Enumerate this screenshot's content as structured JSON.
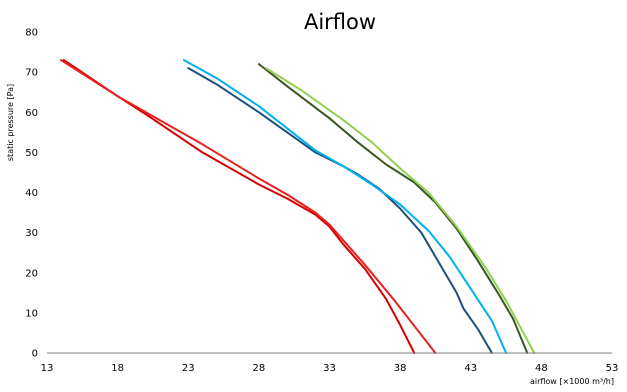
{
  "chart_data": {
    "type": "line",
    "title": "Airflow",
    "xlabel": "airflow [×1000 m³/h]",
    "ylabel": "static pressure [Pa]",
    "xlim": [
      13,
      53
    ],
    "ylim": [
      0,
      80
    ],
    "x_ticks": [
      13,
      18,
      23,
      28,
      33,
      38,
      43,
      48,
      53
    ],
    "y_ticks": [
      0,
      10,
      20,
      30,
      40,
      50,
      60,
      70,
      80
    ],
    "grid": false,
    "legend": "none",
    "series": [
      {
        "color": "#d40000",
        "points": [
          [
            14.2,
            73
          ],
          [
            18,
            64
          ],
          [
            20,
            59.5
          ],
          [
            24,
            50
          ],
          [
            28,
            42
          ],
          [
            30,
            38.5
          ],
          [
            32,
            34.5
          ],
          [
            33,
            31.5
          ],
          [
            34,
            27
          ],
          [
            35.5,
            21
          ],
          [
            37,
            13.5
          ],
          [
            38,
            7
          ],
          [
            39,
            0
          ]
        ]
      },
      {
        "color": "#e82020",
        "points": [
          [
            14,
            73
          ],
          [
            18,
            64
          ],
          [
            20,
            60
          ],
          [
            24,
            52
          ],
          [
            28,
            43.5
          ],
          [
            30,
            39.5
          ],
          [
            32,
            35
          ],
          [
            33,
            32
          ],
          [
            34,
            28
          ],
          [
            35.5,
            22
          ],
          [
            37.5,
            13.5
          ],
          [
            38.5,
            9
          ],
          [
            40.5,
            0
          ]
        ]
      },
      {
        "color": "#1f4e79",
        "points": [
          [
            23,
            71
          ],
          [
            25,
            67
          ],
          [
            28,
            60
          ],
          [
            30,
            55
          ],
          [
            32,
            50
          ],
          [
            34,
            46.5
          ],
          [
            35,
            44.5
          ],
          [
            36.5,
            41
          ],
          [
            38,
            36
          ],
          [
            39.5,
            30
          ],
          [
            41,
            21
          ],
          [
            42,
            15
          ],
          [
            42.5,
            11
          ],
          [
            43.5,
            6
          ],
          [
            44.5,
            0
          ]
        ]
      },
      {
        "color": "#00b0f0",
        "points": [
          [
            22.7,
            73
          ],
          [
            25,
            68.5
          ],
          [
            28,
            61.5
          ],
          [
            30,
            56
          ],
          [
            32,
            50.5
          ],
          [
            34,
            46.5
          ],
          [
            36,
            42
          ],
          [
            38,
            37
          ],
          [
            40,
            30.5
          ],
          [
            41.5,
            24
          ],
          [
            43,
            16
          ],
          [
            44.5,
            8
          ],
          [
            45.5,
            0
          ]
        ]
      },
      {
        "color": "#385723",
        "points": [
          [
            28,
            72
          ],
          [
            30,
            66.5
          ],
          [
            33,
            58.5
          ],
          [
            35,
            52.5
          ],
          [
            37,
            47
          ],
          [
            39,
            42.5
          ],
          [
            40.5,
            37.5
          ],
          [
            42,
            31
          ],
          [
            43.5,
            23
          ],
          [
            45,
            14.5
          ],
          [
            46,
            8.5
          ],
          [
            47,
            0
          ]
        ]
      },
      {
        "color": "#92d050",
        "points": [
          [
            28.5,
            71
          ],
          [
            31,
            65.5
          ],
          [
            34,
            58
          ],
          [
            36,
            52.5
          ],
          [
            38,
            46
          ],
          [
            40,
            40
          ],
          [
            42,
            31.5
          ],
          [
            44,
            21.5
          ],
          [
            45.5,
            13
          ],
          [
            46.5,
            6.5
          ],
          [
            47.5,
            0
          ]
        ]
      }
    ]
  }
}
